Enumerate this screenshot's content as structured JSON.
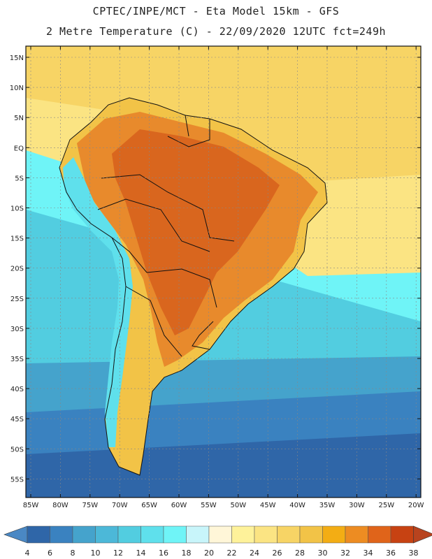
{
  "header": {
    "line1": "CPTEC/INPE/MCT -  Eta Model 15km - GFS",
    "line2": "2 Metre Temperature (C) - 22/09/2020 12UTC fct=249h"
  },
  "axes": {
    "lat_labels": [
      "15N",
      "10N",
      "5N",
      "EQ",
      "5S",
      "10S",
      "15S",
      "20S",
      "25S",
      "30S",
      "35S",
      "40S",
      "45S",
      "50S",
      "55S"
    ],
    "lon_labels": [
      "85W",
      "80W",
      "75W",
      "70W",
      "65W",
      "60W",
      "55W",
      "50W",
      "45W",
      "40W",
      "35W",
      "30W",
      "25W",
      "20W"
    ]
  },
  "colorbar": {
    "labels": [
      "4",
      "6",
      "8",
      "10",
      "12",
      "14",
      "16",
      "18",
      "20",
      "22",
      "24",
      "26",
      "28",
      "30",
      "32",
      "34",
      "36",
      "38"
    ],
    "colors": [
      "#2f66a8",
      "#3a82c0",
      "#45a3cc",
      "#4cb8d8",
      "#52cde0",
      "#5fe0ec",
      "#6ff4f7",
      "#c8f5fa",
      "#fff6d8",
      "#fef29a",
      "#fbe483",
      "#f7d465",
      "#f2c347",
      "#f3ad14",
      "#ed8c22",
      "#e0641a",
      "#c74212"
    ],
    "low_color": "#4a88c4",
    "high_color": "#b8431e"
  },
  "map_colors": {
    "deep_ocean": "#2f66a8",
    "ocean_mid": "#3a82c0",
    "ocean_cool": "#45a3cc",
    "ocean_light": "#52cde0",
    "ocean_pale": "#6ff4f7",
    "ocean_warm": "#fbe483",
    "ocean_tropic": "#f7d465",
    "land_hot": "#d9661e",
    "land_warm": "#e88a2c",
    "land_mild": "#f2c347",
    "land_cool": "#5fe0ec",
    "border": "#111111"
  }
}
